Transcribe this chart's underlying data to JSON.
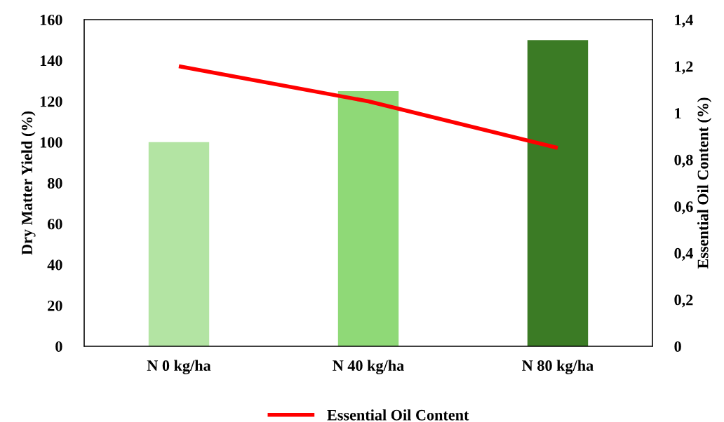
{
  "chart_data": {
    "type": "bar",
    "categories": [
      "N 0 kg/ha",
      "N 40 kg/ha",
      "N 80 kg/ha"
    ],
    "ylabel": "Dry Matter Yield (%)",
    "y2label": "Essential Oil Content (%)",
    "series": [
      {
        "colors": [
          "#b3e4a3",
          "#8fd977",
          "#3b7b25"
        ],
        "values": [
          100,
          125,
          150
        ]
      },
      {
        "type": "line",
        "name": "Essential Oil Content",
        "color": "#ff0000",
        "axis": "y2",
        "values": [
          1.2,
          1.05,
          0.85
        ]
      }
    ],
    "ylim": [
      0,
      160
    ],
    "yticks": [
      0,
      20,
      40,
      60,
      80,
      100,
      120,
      140,
      160
    ],
    "y2lim": [
      0,
      1.4
    ],
    "y2ticks": [
      0,
      {
        "value": 0.2,
        "label": "0,2"
      },
      {
        "value": 0.4,
        "label": "0,4"
      },
      {
        "value": 0.6,
        "label": "0,6"
      },
      {
        "value": 0.8,
        "label": "0,8"
      },
      1,
      {
        "value": 1.2,
        "label": "1,2"
      },
      {
        "value": 1.4,
        "label": "1,4"
      }
    ],
    "grid": false,
    "legend": "bottom",
    "marker": "none",
    "line_style": "solid"
  }
}
